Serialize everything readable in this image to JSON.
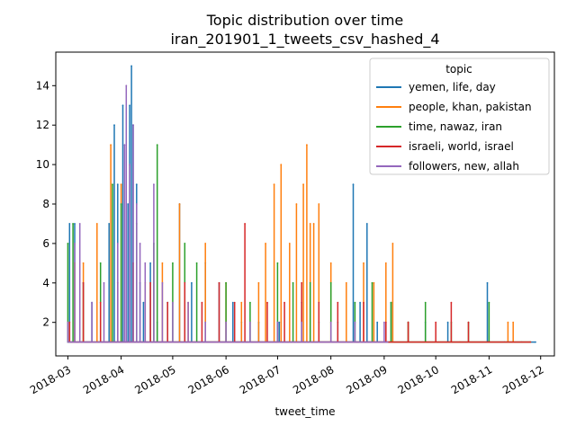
{
  "chart_data": {
    "type": "line",
    "title": "Topic distribution over time",
    "subtitle": "iran_201901_1_tweets_csv_hashed_4",
    "xlabel": "tweet_time",
    "ylabel": "",
    "x_range": [
      "2018-02-22",
      "2018-12-09"
    ],
    "ylim": [
      0.3,
      15.7
    ],
    "x_ticks": [
      "2018-03",
      "2018-04",
      "2018-05",
      "2018-06",
      "2018-07",
      "2018-08",
      "2018-09",
      "2018-10",
      "2018-11",
      "2018-12"
    ],
    "y_ticks": [
      2,
      4,
      6,
      8,
      10,
      12,
      14
    ],
    "grid": false,
    "legend": {
      "title": "topic",
      "placement": "top-right"
    },
    "series": [
      {
        "name": "yemen, life, day",
        "color": "#1f77b4",
        "x": [
          "2018-03-02",
          "2018-03-05",
          "2018-03-15",
          "2018-03-25",
          "2018-03-28",
          "2018-03-30",
          "2018-04-02",
          "2018-04-05",
          "2018-04-06",
          "2018-04-07",
          "2018-04-08",
          "2018-04-10",
          "2018-04-12",
          "2018-04-14",
          "2018-04-18",
          "2018-04-22",
          "2018-04-28",
          "2018-05-05",
          "2018-05-12",
          "2018-05-20",
          "2018-05-28",
          "2018-06-05",
          "2018-06-10",
          "2018-06-20",
          "2018-07-02",
          "2018-07-15",
          "2018-07-25",
          "2018-08-05",
          "2018-08-14",
          "2018-08-18",
          "2018-08-22",
          "2018-08-28",
          "2018-09-05",
          "2018-09-15",
          "2018-09-25",
          "2018-10-08",
          "2018-10-20",
          "2018-10-31",
          "2018-11-10",
          "2018-11-20",
          "2018-11-28"
        ],
        "y": [
          7,
          7,
          3,
          7,
          12,
          9,
          13,
          8,
          13,
          15,
          12,
          9,
          4,
          3,
          5,
          2,
          3,
          8,
          4,
          5,
          4,
          3,
          2,
          2,
          2,
          3,
          2,
          2,
          9,
          3,
          7,
          2,
          3,
          2,
          2,
          2,
          1,
          4,
          1,
          1,
          1
        ]
      },
      {
        "name": "people, khan, pakistan",
        "color": "#ff7f0e",
        "x": [
          "2018-03-05",
          "2018-03-10",
          "2018-03-18",
          "2018-03-26",
          "2018-04-01",
          "2018-04-08",
          "2018-04-15",
          "2018-04-25",
          "2018-05-05",
          "2018-05-10",
          "2018-05-20",
          "2018-06-01",
          "2018-06-10",
          "2018-06-20",
          "2018-06-24",
          "2018-06-29",
          "2018-07-03",
          "2018-07-08",
          "2018-07-12",
          "2018-07-16",
          "2018-07-18",
          "2018-07-20",
          "2018-07-22",
          "2018-07-25",
          "2018-08-01",
          "2018-08-10",
          "2018-08-20",
          "2018-08-26",
          "2018-09-02",
          "2018-09-06",
          "2018-09-15",
          "2018-10-01",
          "2018-10-15",
          "2018-11-01",
          "2018-11-12",
          "2018-11-15",
          "2018-11-25"
        ],
        "y": [
          5,
          5,
          7,
          11,
          9,
          5,
          4,
          5,
          8,
          3,
          6,
          4,
          3,
          4,
          6,
          9,
          10,
          6,
          8,
          9,
          11,
          7,
          7,
          8,
          5,
          4,
          5,
          4,
          5,
          6,
          2,
          1,
          1,
          1,
          2,
          2,
          1
        ]
      },
      {
        "name": "time, nawaz, iran",
        "color": "#2ca02c",
        "x": [
          "2018-03-01",
          "2018-03-04",
          "2018-03-10",
          "2018-03-20",
          "2018-03-27",
          "2018-04-01",
          "2018-04-10",
          "2018-04-20",
          "2018-04-22",
          "2018-05-01",
          "2018-05-08",
          "2018-05-15",
          "2018-06-01",
          "2018-06-15",
          "2018-07-01",
          "2018-07-10",
          "2018-07-20",
          "2018-08-01",
          "2018-08-15",
          "2018-08-25",
          "2018-09-05",
          "2018-09-15",
          "2018-09-25",
          "2018-10-10",
          "2018-10-20",
          "2018-11-01",
          "2018-11-15",
          "2018-11-25"
        ],
        "y": [
          6,
          7,
          4,
          5,
          9,
          8,
          7,
          6,
          11,
          5,
          6,
          5,
          4,
          3,
          5,
          4,
          4,
          4,
          3,
          4,
          3,
          2,
          3,
          2,
          2,
          3,
          1,
          1
        ]
      },
      {
        "name": "israeli, world, israel",
        "color": "#d62728",
        "x": [
          "2018-03-02",
          "2018-03-10",
          "2018-03-20",
          "2018-03-30",
          "2018-04-08",
          "2018-04-18",
          "2018-04-28",
          "2018-05-08",
          "2018-05-18",
          "2018-05-28",
          "2018-06-06",
          "2018-06-12",
          "2018-06-25",
          "2018-07-05",
          "2018-07-15",
          "2018-07-25",
          "2018-08-05",
          "2018-08-20",
          "2018-09-02",
          "2018-09-15",
          "2018-10-01",
          "2018-10-10",
          "2018-10-20",
          "2018-11-01",
          "2018-11-15",
          "2018-11-25"
        ],
        "y": [
          2,
          4,
          3,
          4,
          5,
          4,
          3,
          4,
          3,
          4,
          3,
          7,
          3,
          3,
          4,
          3,
          3,
          3,
          2,
          2,
          2,
          3,
          2,
          1,
          1,
          1
        ]
      },
      {
        "name": "followers, new, allah",
        "color": "#9467bd",
        "x": [
          "2018-03-01",
          "2018-03-05",
          "2018-03-08",
          "2018-03-15",
          "2018-03-22",
          "2018-03-30",
          "2018-04-03",
          "2018-04-04",
          "2018-04-06",
          "2018-04-08",
          "2018-04-10",
          "2018-04-12",
          "2018-04-15",
          "2018-04-20",
          "2018-04-25",
          "2018-05-01",
          "2018-05-10",
          "2018-05-20",
          "2018-06-01",
          "2018-06-15",
          "2018-07-01",
          "2018-07-15",
          "2018-08-01",
          "2018-08-15",
          "2018-09-01",
          "2018-09-03"
        ],
        "y": [
          2,
          6,
          7,
          3,
          4,
          6,
          11,
          14,
          10,
          12,
          8,
          6,
          5,
          9,
          4,
          3,
          3,
          2,
          2,
          2,
          2,
          2,
          2,
          2,
          2,
          1
        ]
      }
    ]
  }
}
